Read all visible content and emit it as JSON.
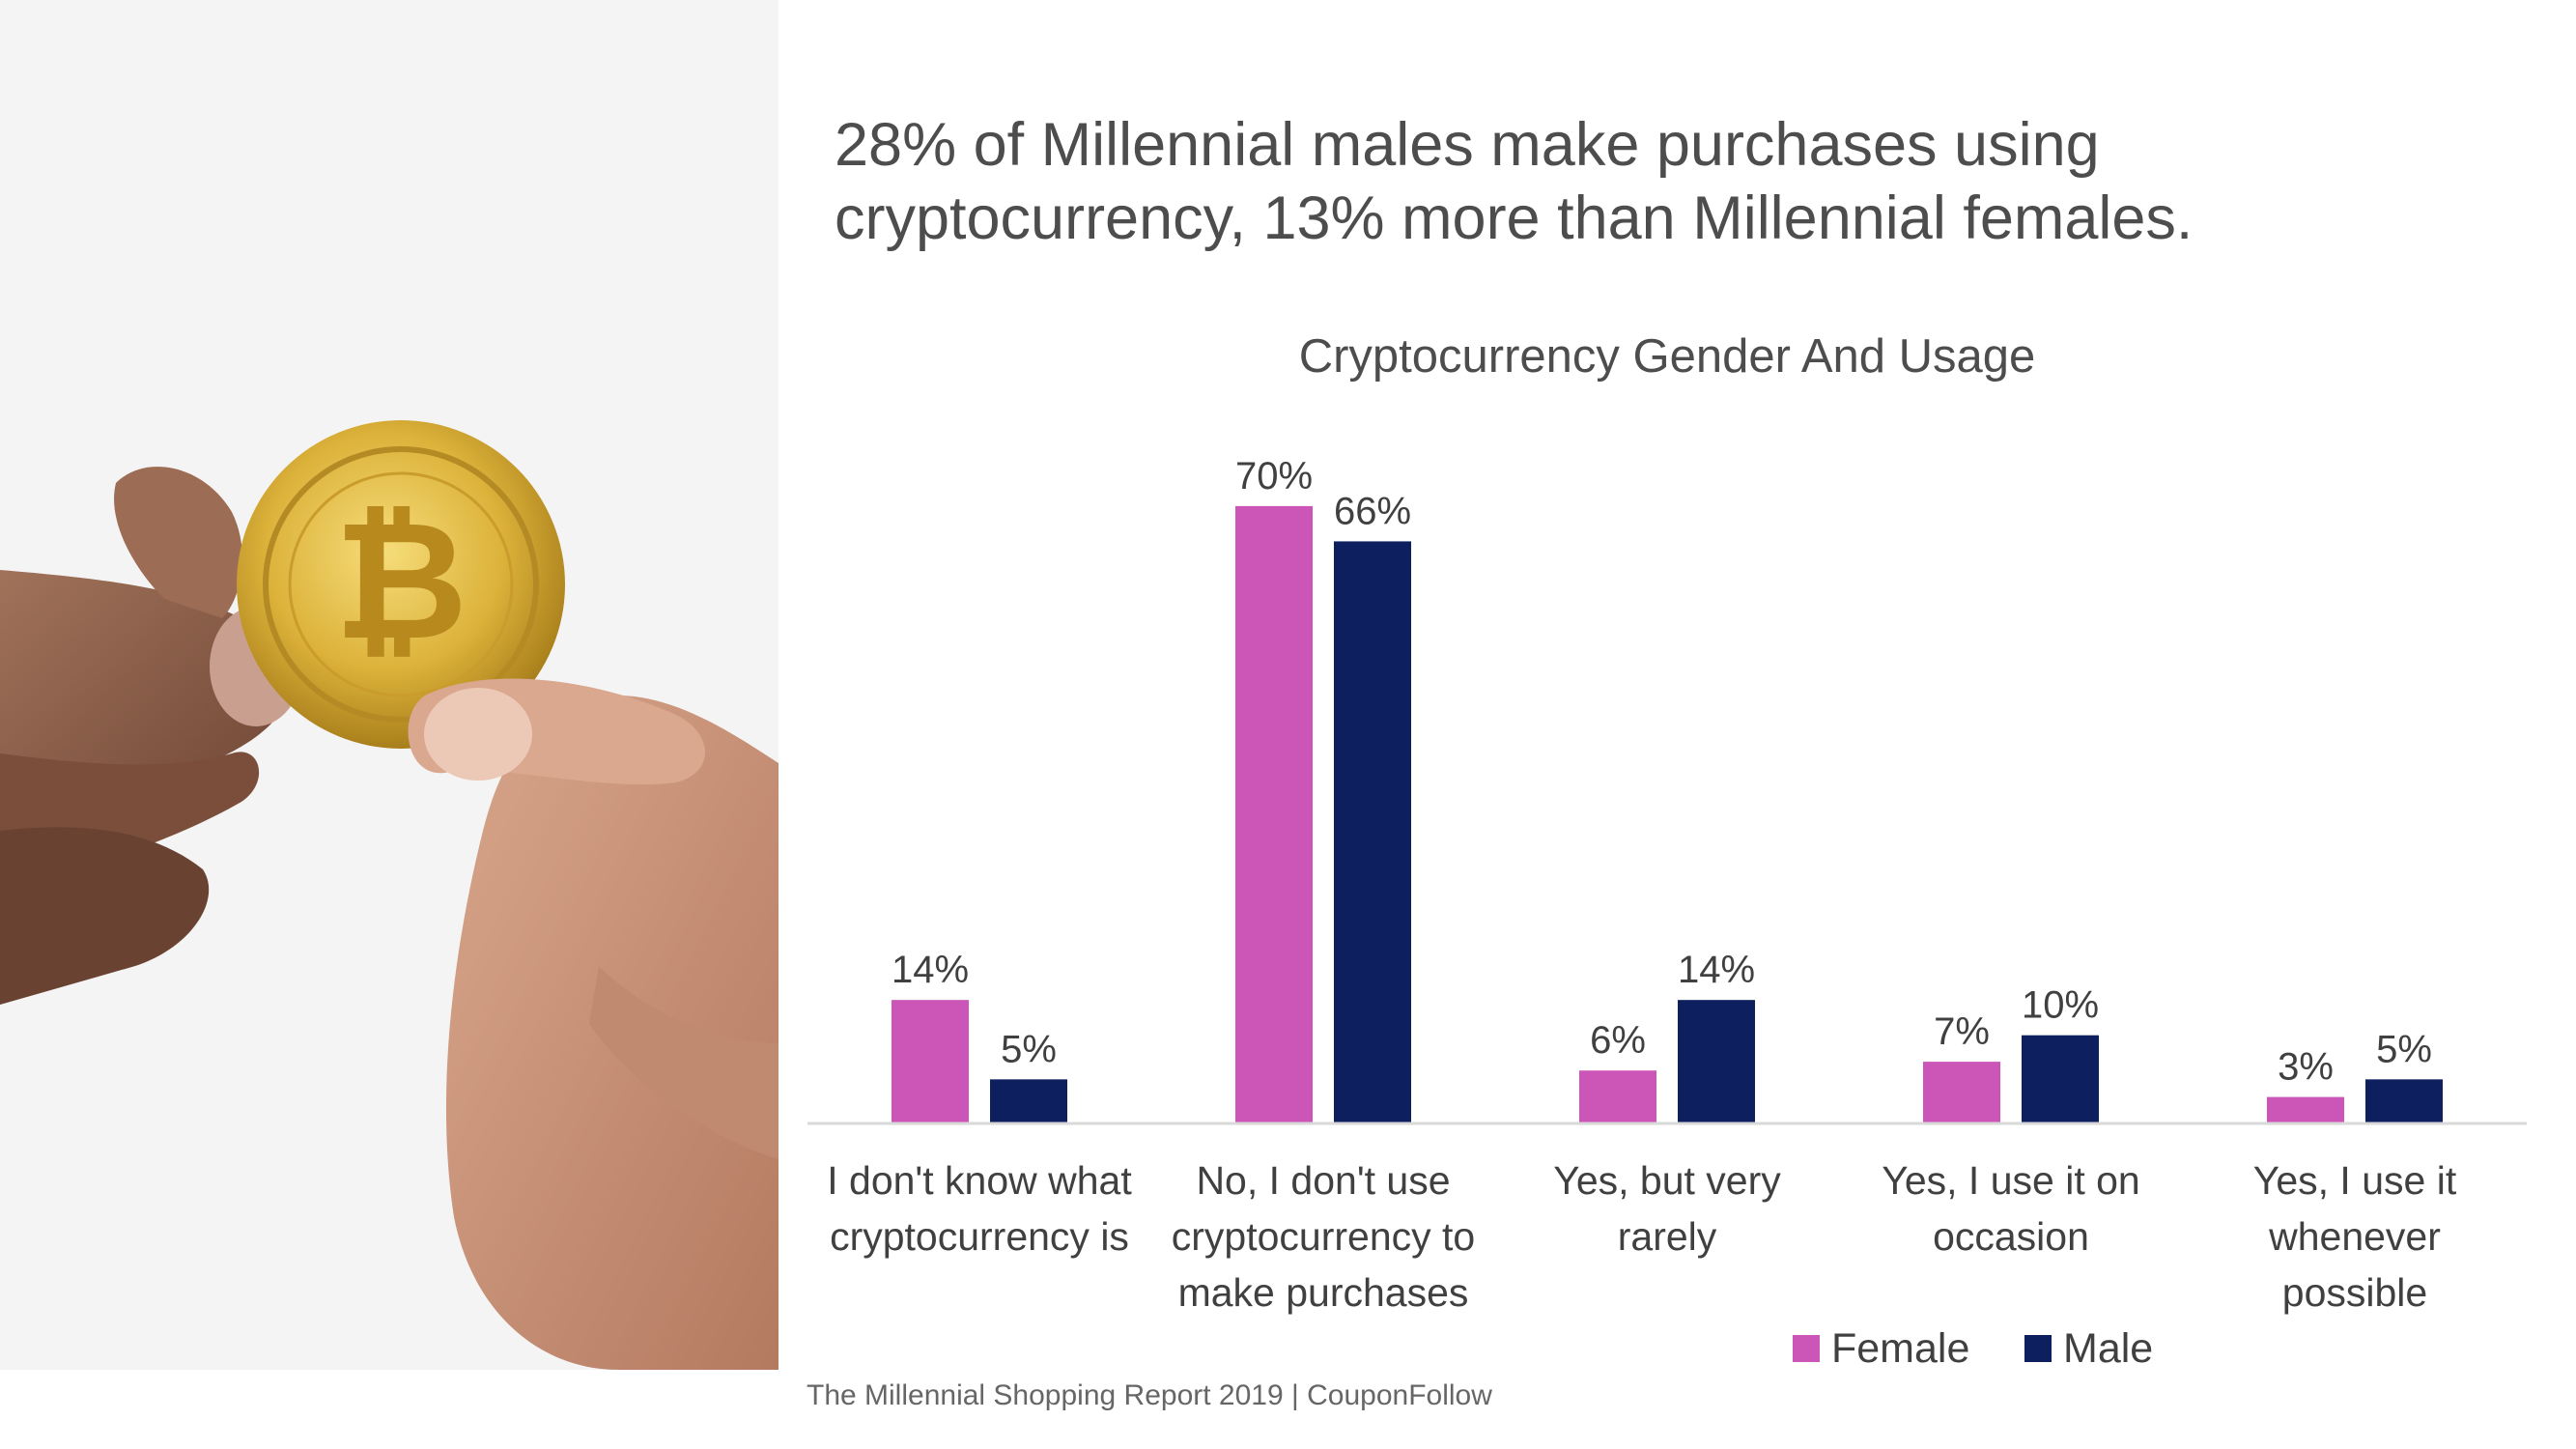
{
  "headline": "28% of Millennial males make purchases using cryptocurrency, 13% more than Millennial females.",
  "footer": "The Millennial Shopping Report 2019 | CouponFollow",
  "photo": {
    "subject": "hands-holding-bitcoin-coin"
  },
  "chart_data": {
    "type": "bar",
    "title": "Cryptocurrency Gender And Usage",
    "categories": [
      [
        "I don't know what",
        "cryptocurrency is"
      ],
      [
        "No, I don't use",
        "cryptocurrency to",
        "make purchases"
      ],
      [
        "Yes, but very",
        "rarely"
      ],
      [
        "Yes, I use it on",
        "occasion"
      ],
      [
        "Yes, I use it",
        "whenever",
        "possible"
      ]
    ],
    "series": [
      {
        "name": "Female",
        "color": "#cc55b8",
        "values": [
          14,
          70,
          6,
          7,
          3
        ],
        "labels": [
          "14%",
          "70%",
          "6%",
          "7%",
          "3%"
        ]
      },
      {
        "name": "Male",
        "color": "#0d1f5e",
        "values": [
          5,
          66,
          14,
          10,
          5
        ],
        "labels": [
          "5%",
          "66%",
          "14%",
          "10%",
          "5%"
        ]
      }
    ],
    "unit": "%",
    "ylim": [
      0,
      70
    ],
    "grid": false,
    "legend": "bottom-right",
    "axis_color": "#d9d9d9",
    "label_color": "#404040"
  }
}
